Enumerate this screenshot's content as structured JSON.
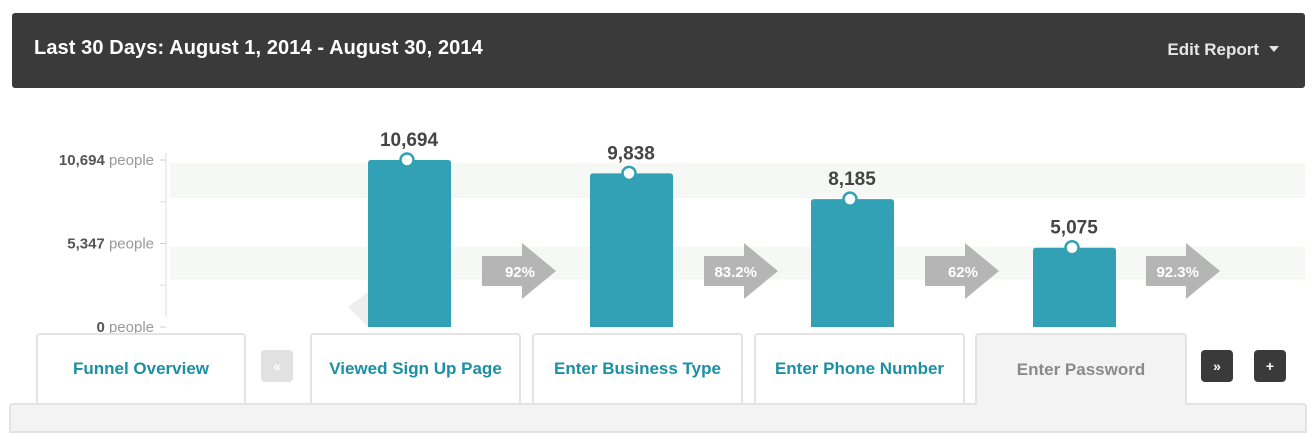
{
  "header": {
    "title": "Last 30 Days: August 1, 2014 - August 30, 2014",
    "edit_report_label": "Edit Report"
  },
  "colors": {
    "bar": "#33a1b5",
    "arrow": "#b5b5b5",
    "header_bg": "#3a3a3a",
    "tab_text": "#1b8fa3",
    "active_tab_text": "#8a8a8a"
  },
  "chart_data": {
    "type": "bar",
    "categories": [
      "Viewed Sign Up Page",
      "Enter Business Type",
      "Enter Phone Number",
      "Enter Password"
    ],
    "values": [
      10694,
      9838,
      8185,
      5075
    ],
    "value_labels": [
      "10,694",
      "9,838",
      "8,185",
      "5,075"
    ],
    "conversion_rates": [
      "92%",
      "83.2%",
      "62%",
      "92.3%"
    ],
    "y_ticks": [
      {
        "value": 10694,
        "num": "10,694",
        "unit": "people"
      },
      {
        "value": 5347,
        "num": "5,347",
        "unit": "people"
      },
      {
        "value": 0,
        "num": "0",
        "unit": "people"
      }
    ],
    "ylim": [
      0,
      10694
    ]
  },
  "tabs": {
    "overview": "Funnel Overview",
    "prev": "«",
    "next": "»",
    "add": "+",
    "steps": [
      "Viewed Sign Up Page",
      "Enter Business Type",
      "Enter Phone Number",
      "Enter Password"
    ],
    "active_index": 3
  }
}
